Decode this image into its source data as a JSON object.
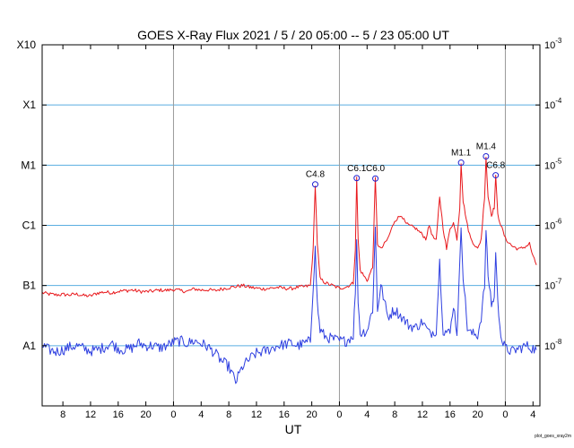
{
  "chart_data": {
    "type": "line",
    "title": "GOES X-Ray Flux   2021 /  5 / 20   05:00 --  5 / 23   05:00   UT",
    "xlabel": "UT",
    "credit": "plot_goes_xray2m",
    "x_range_hours": [
      -5,
      67
    ],
    "y_scale": "log",
    "ylim": [
      1e-09,
      0.001
    ],
    "grid": true,
    "x_ticks": [
      {
        "h": -2,
        "label": "8"
      },
      {
        "h": 2,
        "label": "12"
      },
      {
        "h": 6,
        "label": "16"
      },
      {
        "h": 10,
        "label": "20"
      },
      {
        "h": 14,
        "label": "0"
      },
      {
        "h": 18,
        "label": "4"
      },
      {
        "h": 22,
        "label": "8"
      },
      {
        "h": 26,
        "label": "12"
      },
      {
        "h": 30,
        "label": "16"
      },
      {
        "h": 34,
        "label": "20"
      },
      {
        "h": 38,
        "label": "0"
      },
      {
        "h": 42,
        "label": "4"
      },
      {
        "h": 46,
        "label": "8"
      },
      {
        "h": 50,
        "label": "12"
      },
      {
        "h": 54,
        "label": "16"
      },
      {
        "h": 58,
        "label": "20"
      },
      {
        "h": 62,
        "label": "0"
      },
      {
        "h": 66,
        "label": "4"
      }
    ],
    "day_boundaries_h": [
      14,
      38,
      62
    ],
    "left_axis": [
      {
        "label": "X10",
        "v": 0.001
      },
      {
        "label": "X1",
        "v": 0.0001
      },
      {
        "label": "M1",
        "v": 1e-05
      },
      {
        "label": "C1",
        "v": 1e-06
      },
      {
        "label": "B1",
        "v": 1e-07
      },
      {
        "label": "A1",
        "v": 1e-08
      }
    ],
    "right_axis": [
      {
        "mantissa": "10",
        "exp": "-3",
        "v": 0.001
      },
      {
        "mantissa": "10",
        "exp": "-4",
        "v": 0.0001
      },
      {
        "mantissa": "10",
        "exp": "-5",
        "v": 1e-05
      },
      {
        "mantissa": "10",
        "exp": "-6",
        "v": 1e-06
      },
      {
        "mantissa": "10",
        "exp": "-7",
        "v": 1e-07
      },
      {
        "mantissa": "10",
        "exp": "-8",
        "v": 1e-08
      }
    ],
    "flares": [
      {
        "label": "C4.8",
        "h": 34.5,
        "v": 4.8e-06
      },
      {
        "label": "C6.1",
        "h": 40.5,
        "v": 6.1e-06
      },
      {
        "label": "C6.0",
        "h": 43.2,
        "v": 6e-06
      },
      {
        "label": "M1.1",
        "h": 55.6,
        "v": 1.1e-05
      },
      {
        "label": "M1.4",
        "h": 59.2,
        "v": 1.4e-05
      },
      {
        "label": "C6.8",
        "h": 60.6,
        "v": 6.8e-06
      }
    ],
    "series": [
      {
        "name": "long",
        "color": "#e8181c",
        "points": [
          [
            -5,
            7.6e-08
          ],
          [
            -4,
            7.2e-08
          ],
          [
            -3,
            7e-08
          ],
          [
            -2,
            7.1e-08
          ],
          [
            -1,
            7e-08
          ],
          [
            0,
            7.2e-08
          ],
          [
            1,
            6.8e-08
          ],
          [
            2,
            6.7e-08
          ],
          [
            3,
            7.5e-08
          ],
          [
            4,
            7.8e-08
          ],
          [
            5,
            7.6e-08
          ],
          [
            6,
            8e-08
          ],
          [
            7,
            8.2e-08
          ],
          [
            8,
            8.4e-08
          ],
          [
            9,
            8e-08
          ],
          [
            10,
            7.9e-08
          ],
          [
            11,
            8.1e-08
          ],
          [
            12,
            8.4e-08
          ],
          [
            13,
            8.3e-08
          ],
          [
            14,
            8.6e-08
          ],
          [
            15,
            8.2e-08
          ],
          [
            16,
            8e-08
          ],
          [
            17,
            8.8e-08
          ],
          [
            18,
            8.4e-08
          ],
          [
            19,
            8.5e-08
          ],
          [
            20,
            8.2e-08
          ],
          [
            21,
            8.8e-08
          ],
          [
            22,
            9.2e-08
          ],
          [
            23,
            9.6e-08
          ],
          [
            24,
            1e-07
          ],
          [
            25,
            9.4e-08
          ],
          [
            26,
            9e-08
          ],
          [
            27,
            8.8e-08
          ],
          [
            28,
            9e-08
          ],
          [
            29,
            9.3e-08
          ],
          [
            30,
            9e-08
          ],
          [
            31,
            8.9e-08
          ],
          [
            32,
            9.4e-08
          ],
          [
            33,
            9.6e-08
          ],
          [
            33.8,
            1e-07
          ],
          [
            34.2,
            4e-07
          ],
          [
            34.5,
            4.8e-06
          ],
          [
            34.8,
            5e-07
          ],
          [
            35.2,
            1.3e-07
          ],
          [
            36,
            1.1e-07
          ],
          [
            37,
            1e-07
          ],
          [
            38,
            9e-08
          ],
          [
            39,
            9.5e-08
          ],
          [
            40,
            1.1e-07
          ],
          [
            40.3,
            4e-07
          ],
          [
            40.5,
            6.1e-06
          ],
          [
            40.7,
            6e-07
          ],
          [
            41,
            1.8e-07
          ],
          [
            42,
            1.2e-07
          ],
          [
            42.8,
            2e-07
          ],
          [
            43.2,
            6e-06
          ],
          [
            43.5,
            5e-07
          ],
          [
            44,
            4e-07
          ],
          [
            45,
            6e-07
          ],
          [
            46,
            1.2e-06
          ],
          [
            47,
            1.5e-06
          ],
          [
            47.5,
            1.1e-06
          ],
          [
            48,
            1e-06
          ],
          [
            49,
            9e-07
          ],
          [
            50,
            7e-07
          ],
          [
            50.5,
            6e-07
          ],
          [
            51,
            1e-06
          ],
          [
            51.5,
            6.5e-07
          ],
          [
            52,
            5.5e-07
          ],
          [
            52.5,
            3e-06
          ],
          [
            53,
            9e-07
          ],
          [
            53.5,
            4e-07
          ],
          [
            54,
            9e-07
          ],
          [
            54.5,
            1.1e-06
          ],
          [
            55,
            6e-07
          ],
          [
            55.4,
            2e-06
          ],
          [
            55.6,
            1.1e-05
          ],
          [
            55.9,
            2.5e-06
          ],
          [
            56.5,
            1e-06
          ],
          [
            57,
            6e-07
          ],
          [
            58,
            4e-07
          ],
          [
            58.5,
            6e-07
          ],
          [
            59,
            3e-06
          ],
          [
            59.2,
            1.4e-05
          ],
          [
            59.5,
            3e-06
          ],
          [
            60,
            1.5e-06
          ],
          [
            60.4,
            2e-06
          ],
          [
            60.6,
            6.8e-06
          ],
          [
            60.9,
            1.5e-06
          ],
          [
            61.5,
            9e-07
          ],
          [
            62,
            6e-07
          ],
          [
            63,
            4.5e-07
          ],
          [
            64,
            4e-07
          ],
          [
            65,
            4.5e-07
          ],
          [
            65.5,
            5e-07
          ],
          [
            66,
            3e-07
          ],
          [
            66.5,
            2.2e-07
          ]
        ]
      },
      {
        "name": "short",
        "color": "#2e3fe0",
        "points": [
          [
            -5,
            1e-08
          ],
          [
            -4,
            8.5e-09
          ],
          [
            -3,
            8e-09
          ],
          [
            -2,
            8.5e-09
          ],
          [
            -1,
            9.5e-09
          ],
          [
            0,
            1e-08
          ],
          [
            1,
            9e-09
          ],
          [
            2,
            8.2e-09
          ],
          [
            3,
            8.5e-09
          ],
          [
            4,
            9.5e-09
          ],
          [
            5,
            1.1e-08
          ],
          [
            6,
            9e-09
          ],
          [
            7,
            8.5e-09
          ],
          [
            8,
            9.2e-09
          ],
          [
            9,
            1.1e-08
          ],
          [
            10,
            1e-08
          ],
          [
            11,
            1e-08
          ],
          [
            12,
            9.2e-09
          ],
          [
            13,
            1e-08
          ],
          [
            14,
            1.15e-08
          ],
          [
            15,
            1.2e-08
          ],
          [
            16,
            1.1e-08
          ],
          [
            17,
            1.2e-08
          ],
          [
            18,
            1.1e-08
          ],
          [
            19,
            9.5e-09
          ],
          [
            20,
            7.5e-09
          ],
          [
            21,
            5.5e-09
          ],
          [
            22,
            4.5e-09
          ],
          [
            23,
            2.5e-09
          ],
          [
            24,
            4.5e-09
          ],
          [
            25,
            6e-09
          ],
          [
            26,
            7.5e-09
          ],
          [
            27,
            8e-09
          ],
          [
            28,
            8.8e-09
          ],
          [
            29,
            1e-08
          ],
          [
            30,
            1.05e-08
          ],
          [
            31,
            1.1e-08
          ],
          [
            32,
            1e-08
          ],
          [
            33,
            1.1e-08
          ],
          [
            33.8,
            1.2e-08
          ],
          [
            34.2,
            1e-07
          ],
          [
            34.5,
            4e-07
          ],
          [
            34.8,
            5e-08
          ],
          [
            35.2,
            1.8e-08
          ],
          [
            36,
            1.4e-08
          ],
          [
            37,
            1.3e-08
          ],
          [
            38,
            1.2e-08
          ],
          [
            39,
            1.2e-08
          ],
          [
            40,
            1.5e-08
          ],
          [
            40.3,
            8e-08
          ],
          [
            40.5,
            5e-07
          ],
          [
            40.7,
            6e-08
          ],
          [
            41,
            1.6e-08
          ],
          [
            42,
            1.8e-08
          ],
          [
            42.8,
            4e-08
          ],
          [
            43.2,
            9e-07
          ],
          [
            43.5,
            4e-08
          ],
          [
            44,
            1e-07
          ],
          [
            45,
            3e-08
          ],
          [
            46,
            4e-08
          ],
          [
            47,
            3e-08
          ],
          [
            48,
            2.2e-08
          ],
          [
            49,
            2e-08
          ],
          [
            50,
            2.5e-08
          ],
          [
            51,
            1.6e-08
          ],
          [
            52,
            1.8e-08
          ],
          [
            52.5,
            2.5e-07
          ],
          [
            53,
            1.8e-08
          ],
          [
            54,
            1.6e-08
          ],
          [
            54.5,
            5e-08
          ],
          [
            55,
            1.6e-08
          ],
          [
            55.4,
            2e-07
          ],
          [
            55.6,
            1e-06
          ],
          [
            55.9,
            1.5e-07
          ],
          [
            56.5,
            2e-08
          ],
          [
            57,
            1.6e-08
          ],
          [
            58,
            1.5e-08
          ],
          [
            58.5,
            3e-08
          ],
          [
            59,
            1e-07
          ],
          [
            59.2,
            8e-07
          ],
          [
            59.5,
            1.5e-07
          ],
          [
            60,
            5e-08
          ],
          [
            60.4,
            6e-08
          ],
          [
            60.6,
            4e-07
          ],
          [
            60.9,
            5e-08
          ],
          [
            61.5,
            1.2e-08
          ],
          [
            62,
            9e-09
          ],
          [
            63,
            8e-09
          ],
          [
            64,
            9e-09
          ],
          [
            65,
            1e-08
          ],
          [
            66,
            9e-09
          ],
          [
            66.5,
            8.5e-09
          ]
        ]
      }
    ]
  }
}
